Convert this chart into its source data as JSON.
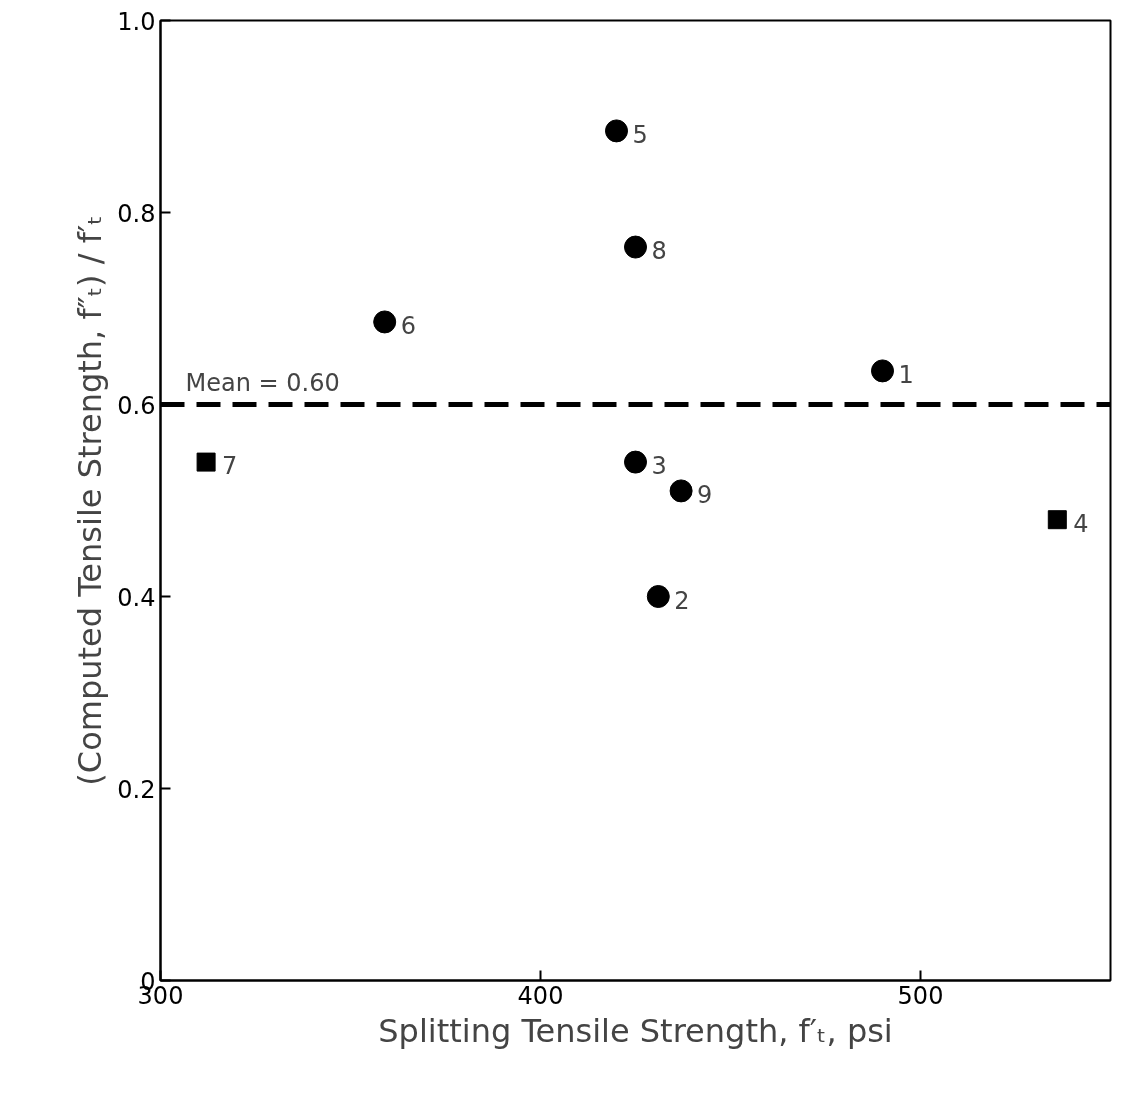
{
  "chart_data": {
    "type": "scatter",
    "xlabel": "Splitting Tensile Strength, f′ₜ, psi",
    "ylabel": "(Computed Tensile Strength, f″ₜ) / f′ₜ",
    "xlim": [
      300,
      550
    ],
    "ylim": [
      0,
      1.0
    ],
    "xticks": [
      300,
      400,
      500
    ],
    "yticks": [
      0,
      0.2,
      0.4,
      0.6,
      0.8,
      {
        "value": 1.0,
        "label": "1.0"
      }
    ],
    "grid": false,
    "series": [
      {
        "color": "#000000",
        "marker": "circle",
        "x": [
          490,
          431,
          425,
          420,
          359,
          425,
          437
        ],
        "values": [
          0.635,
          0.4,
          0.54,
          0.885,
          0.686,
          0.764,
          0.51
        ]
      },
      {
        "color": "#000000",
        "marker": "square",
        "x": [
          536,
          312
        ],
        "values": [
          0.48,
          0.54
        ]
      }
    ],
    "ref_lines": [
      {
        "axis": "y",
        "value": 0.6,
        "label": "Mean = 0.60",
        "line_style": "dashed",
        "color": "#000000"
      }
    ],
    "annotations": [
      {
        "text": "1",
        "x": 490,
        "y": 0.635
      },
      {
        "text": "2",
        "x": 431,
        "y": 0.4
      },
      {
        "text": "3",
        "x": 425,
        "y": 0.54
      },
      {
        "text": "4",
        "x": 536,
        "y": 0.48
      },
      {
        "text": "5",
        "x": 420,
        "y": 0.885
      },
      {
        "text": "6",
        "x": 359,
        "y": 0.686
      },
      {
        "text": "7",
        "x": 312,
        "y": 0.54
      },
      {
        "text": "8",
        "x": 425,
        "y": 0.764
      },
      {
        "text": "9",
        "x": 437,
        "y": 0.51
      }
    ]
  }
}
